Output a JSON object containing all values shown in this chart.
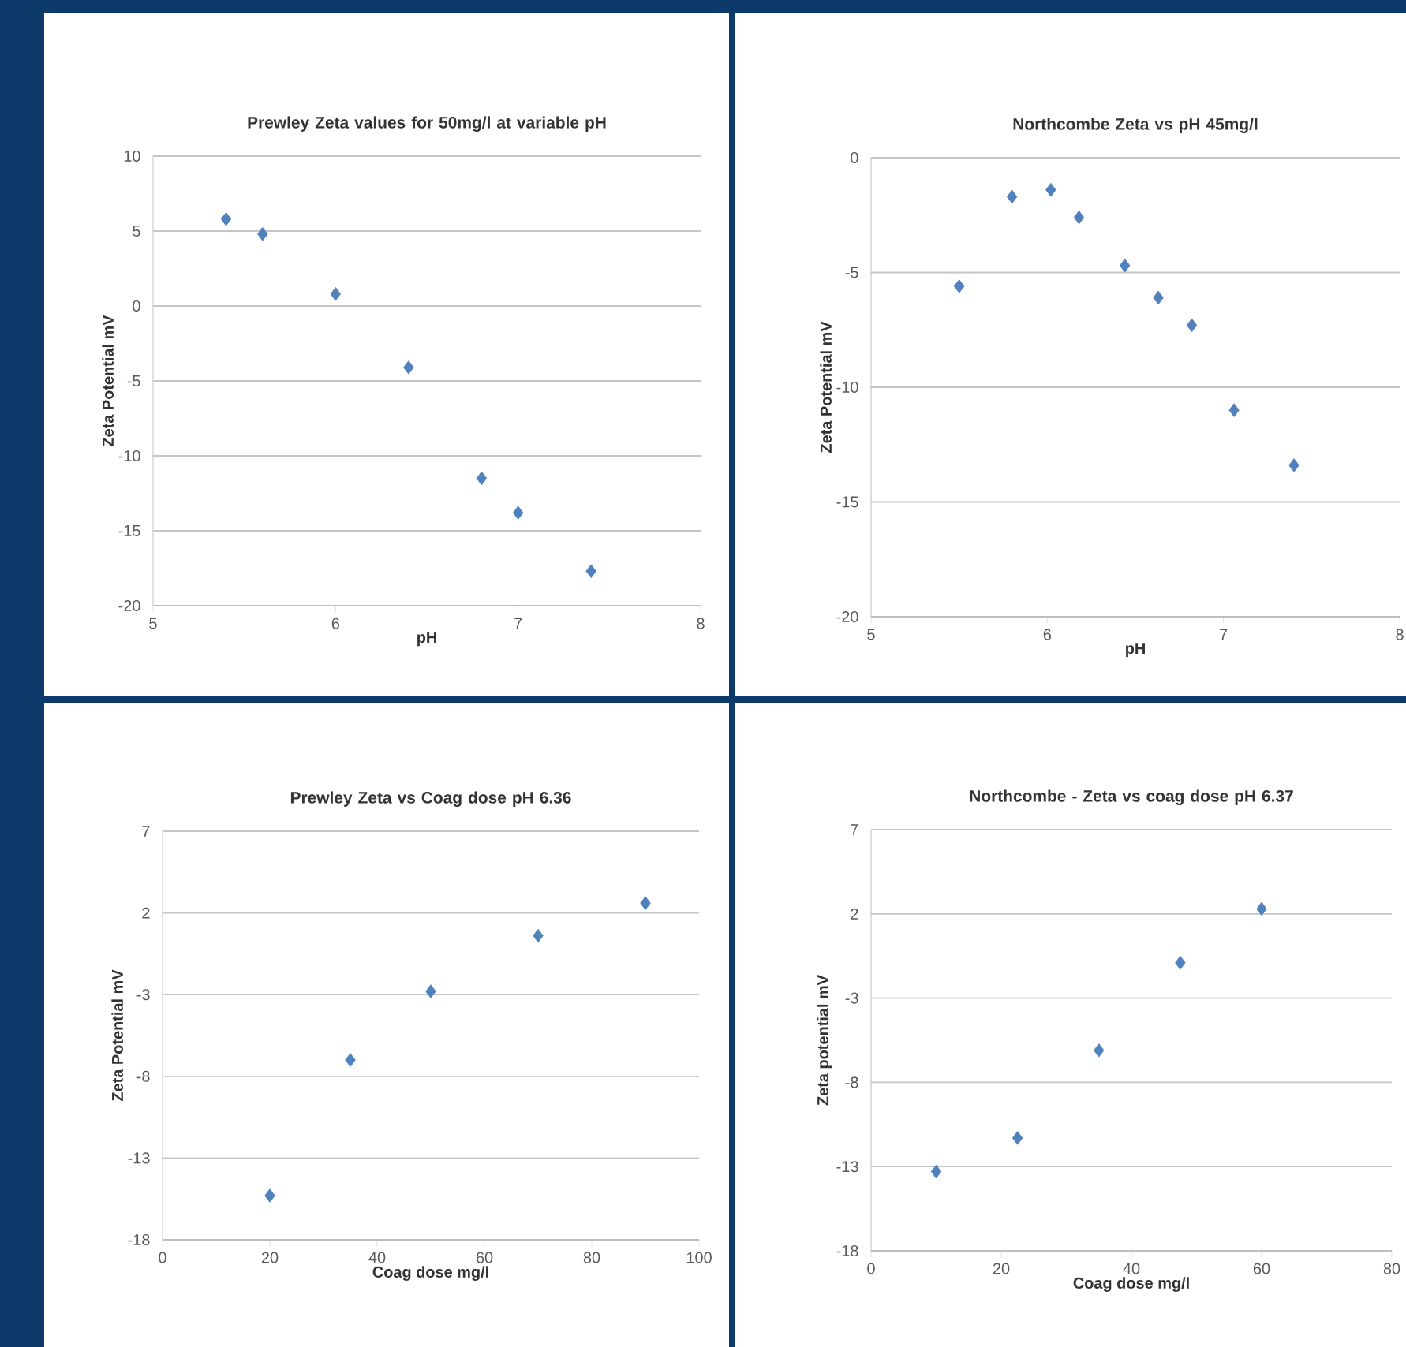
{
  "chart_data": [
    {
      "type": "scatter",
      "title": "Prewley Zeta values for 50mg/l at variable pH",
      "xlabel": "pH",
      "ylabel": "Zeta Potential mV",
      "x": [
        5.4,
        5.6,
        6.0,
        6.4,
        6.8,
        7.0,
        7.4
      ],
      "values": [
        5.8,
        4.8,
        0.8,
        -4.1,
        -11.5,
        -13.8,
        -17.7
      ],
      "color": "#4f81bd",
      "marker": "diamond",
      "grid": "y",
      "xlim": [
        5,
        8
      ],
      "ylim": [
        -20,
        10
      ],
      "xticks": [
        5,
        6,
        7,
        8
      ],
      "yticks": [
        -20,
        -15,
        -10,
        -5,
        0,
        5,
        10
      ]
    },
    {
      "type": "scatter",
      "title": "Northcombe Zeta vs pH 45mg/l",
      "xlabel": "pH",
      "ylabel": "Zeta Potential mV",
      "x": [
        5.5,
        5.8,
        6.02,
        6.18,
        6.44,
        6.63,
        6.82,
        7.06,
        7.4
      ],
      "values": [
        -5.6,
        -1.7,
        -1.4,
        -2.6,
        -4.7,
        -6.1,
        -7.3,
        -11.0,
        -13.4
      ],
      "color": "#4f81bd",
      "marker": "diamond",
      "grid": "y",
      "xlim": [
        5,
        8
      ],
      "ylim": [
        -20,
        0
      ],
      "xticks": [
        5,
        6,
        7,
        8
      ],
      "yticks": [
        -20,
        -15,
        -10,
        -5,
        0
      ]
    },
    {
      "type": "scatter",
      "title": "Prewley Zeta vs Coag dose pH 6.36",
      "xlabel": "Coag dose mg/l",
      "ylabel": "Zeta Potential mV",
      "x": [
        20,
        35,
        50,
        70,
        90
      ],
      "values": [
        -15.3,
        -7.0,
        -2.8,
        0.6,
        2.6
      ],
      "color": "#4f81bd",
      "marker": "diamond",
      "grid": "y",
      "xlim": [
        0,
        100
      ],
      "ylim": [
        -18,
        7
      ],
      "xticks": [
        0,
        20,
        40,
        60,
        80,
        100
      ],
      "yticks": [
        -18,
        -13,
        -8,
        -3,
        2,
        7
      ]
    },
    {
      "type": "scatter",
      "title": "Northcombe - Zeta vs coag dose pH 6.37",
      "xlabel": "Coag dose mg/l",
      "ylabel": "Zeta potential mV",
      "x": [
        10,
        22.5,
        35,
        47.5,
        60
      ],
      "values": [
        -13.3,
        -11.3,
        -6.1,
        -0.9,
        2.3
      ],
      "color": "#4f81bd",
      "marker": "diamond",
      "grid": "y",
      "xlim": [
        0,
        80
      ],
      "ylim": [
        -18,
        7
      ],
      "xticks": [
        0,
        20,
        40,
        60,
        80
      ],
      "yticks": [
        -18,
        -13,
        -8,
        -3,
        2,
        7
      ]
    }
  ]
}
